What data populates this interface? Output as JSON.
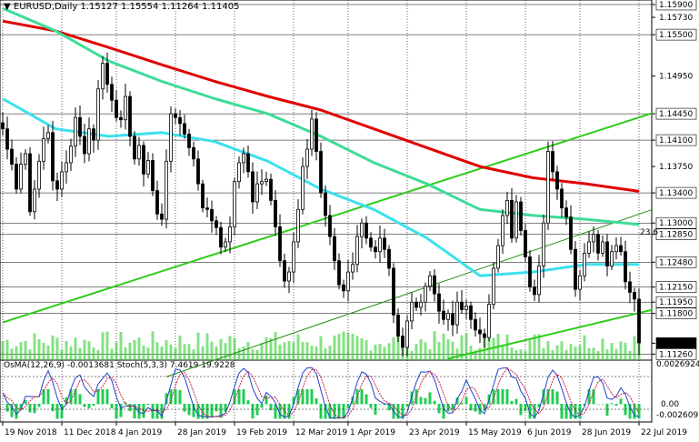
{
  "window": {
    "symbol_header": "EURUSD,Daily  1.15127 1.15554 1.11264 1.11405",
    "indicator_header": "OsMA(12,26,9) -0.0013681  Stoch(5,3,3) 7.4619 19.9228"
  },
  "colors": {
    "bull_candle": "#000000",
    "bear_candle": "#000000",
    "ema_200": "#e00000",
    "ema_144": "#3ddc97",
    "ema_50": "#3ce0ec",
    "channel": "#2ecc1a",
    "inner_channel": "#1f8f0f",
    "volume": "#33cc33",
    "osma": "#22cc55",
    "stoch_main": "#2244cc",
    "stoch_signal": "#cc2244",
    "grid": "#000000",
    "current_price_bg": "#000000",
    "current_price_fg": "#ffffff",
    "fib_label": "#1f6fff",
    "price_label_bg": "#ffffff"
  },
  "chart_data": {
    "type": "candlestick",
    "symbol": "EURUSD",
    "timeframe": "Daily",
    "ohlc_header": {
      "open": 1.15127,
      "high": 1.15554,
      "low": 1.11264,
      "close": 1.11405
    },
    "price_axis_labels": [
      "1.15900",
      "1.15730",
      "1.15500",
      "1.14950",
      "1.14450",
      "1.14100",
      "1.13750",
      "1.13400",
      "1.13000",
      "1.12850",
      "1.12480",
      "1.12150",
      "1.11950",
      "1.11800",
      "1.11405",
      "1.11260"
    ],
    "highlighted_levels": [
      "1.15900",
      "1.15500",
      "1.14450",
      "1.14100",
      "1.13400",
      "1.13000",
      "1.12850",
      "1.12480",
      "1.12150",
      "1.11950",
      "1.11800",
      "1.11260"
    ],
    "current_price": "1.11405",
    "ylim": [
      1.1118,
      1.1596
    ],
    "time_axis_labels": [
      "19 Nov 2018",
      "11 Dec 2018",
      "4 Jan 2019",
      "28 Jan 2019",
      "19 Feb 2019",
      "12 Mar 2019",
      "1 Apr 2019",
      "23 Apr 2019",
      "15 May 2019",
      "6 Jun 2019",
      "28 Jun 2019",
      "22 Jul 2019"
    ],
    "fib_annotation": "23.6",
    "moving_averages": [
      {
        "color": "red",
        "points": [
          1.1568,
          1.1555,
          1.1533,
          1.151,
          1.1488,
          1.1468,
          1.145,
          1.1425,
          1.14,
          1.1375,
          1.136,
          1.1352,
          1.1342
        ]
      },
      {
        "color": "green",
        "points": [
          1.1585,
          1.1555,
          1.1515,
          1.1488,
          1.1465,
          1.1445,
          1.1415,
          1.138,
          1.1352,
          1.1318,
          1.131,
          1.1305,
          1.1298
        ]
      },
      {
        "color": "aqua",
        "points": [
          1.1465,
          1.1425,
          1.1415,
          1.142,
          1.1408,
          1.1382,
          1.1345,
          1.1318,
          1.128,
          1.123,
          1.1235,
          1.1245,
          1.1245
        ]
      }
    ],
    "closes": [
      1.1425,
      1.1398,
      1.1378,
      1.1345,
      1.1378,
      1.1392,
      1.1315,
      1.1345,
      1.1382,
      1.1412,
      1.142,
      1.1356,
      1.1345,
      1.1368,
      1.138,
      1.1402,
      1.144,
      1.1415,
      1.1392,
      1.1425,
      1.141,
      1.1478,
      1.1512,
      1.1484,
      1.1463,
      1.144,
      1.1437,
      1.1468,
      1.1415,
      1.1385,
      1.1403,
      1.1365,
      1.1383,
      1.1343,
      1.1312,
      1.1305,
      1.1382,
      1.1445,
      1.144,
      1.1432,
      1.1418,
      1.14,
      1.1385,
      1.1352,
      1.132,
      1.1318,
      1.1303,
      1.1294,
      1.1268,
      1.1275,
      1.1295,
      1.1355,
      1.138,
      1.1392,
      1.1368,
      1.1328,
      1.1352,
      1.1355,
      1.1358,
      1.133,
      1.1295,
      1.125,
      1.1223,
      1.1235,
      1.1275,
      1.1318,
      1.1375,
      1.1398,
      1.1438,
      1.1395,
      1.134,
      1.131,
      1.1282,
      1.125,
      1.1218,
      1.121,
      1.1235,
      1.1245,
      1.1282,
      1.13,
      1.128,
      1.1268,
      1.1262,
      1.128,
      1.1265,
      1.124,
      1.1178,
      1.115,
      1.1135,
      1.117,
      1.1195,
      1.1188,
      1.1195,
      1.1216,
      1.123,
      1.1206,
      1.1183,
      1.1172,
      1.118,
      1.1165,
      1.1195,
      1.1185,
      1.119,
      1.1172,
      1.1158,
      1.1153,
      1.1148,
      1.1192,
      1.124,
      1.127,
      1.131,
      1.133,
      1.128,
      1.1328,
      1.129,
      1.1255,
      1.1215,
      1.1205,
      1.1243,
      1.13,
      1.1395,
      1.1368,
      1.1345,
      1.132,
      1.1308,
      1.1265,
      1.1212,
      1.123,
      1.126,
      1.1275,
      1.1285,
      1.126,
      1.1275,
      1.1243,
      1.1262,
      1.127,
      1.1262,
      1.1222,
      1.1208,
      1.1199,
      1.1141
    ]
  }
}
